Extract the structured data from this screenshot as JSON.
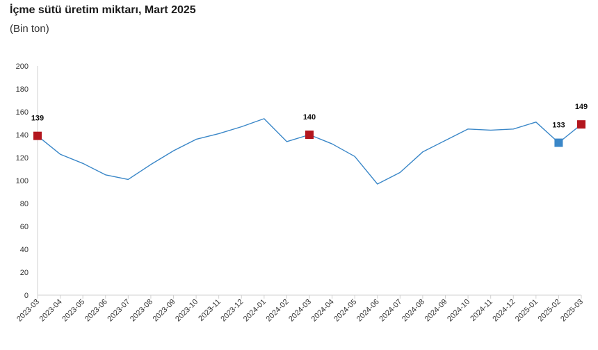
{
  "chart_data": {
    "type": "line",
    "title": "İçme sütü üretim miktarı, Mart 2025",
    "subtitle": "(Bin ton)",
    "xlabel": "",
    "ylabel": "",
    "ylim": [
      0,
      200
    ],
    "yticks": [
      0,
      20,
      40,
      60,
      80,
      100,
      120,
      140,
      160,
      180,
      200
    ],
    "grid": false,
    "legend": "none",
    "x": [
      "2023-03",
      "2023-04",
      "2023-05",
      "2023-06",
      "2023-07",
      "2023-08",
      "2023-09",
      "2023-10",
      "2023-11",
      "2023-12",
      "2024-01",
      "2024-02",
      "2024-03",
      "2024-04",
      "2024-05",
      "2024-06",
      "2024-07",
      "2024-08",
      "2024-09",
      "2024-10",
      "2024-11",
      "2024-12",
      "2025-01",
      "2025-02",
      "2025-03"
    ],
    "series": [
      {
        "values": [
          139,
          123,
          115,
          105,
          101,
          114,
          126,
          136,
          141,
          147,
          154,
          134,
          140,
          132,
          121,
          97,
          107,
          125,
          135,
          145,
          144,
          145,
          151,
          133,
          149
        ],
        "color": "#3a87c8"
      }
    ],
    "highlights": [
      {
        "x": "2023-03",
        "value": 139,
        "label": "139",
        "color": "#b3161e"
      },
      {
        "x": "2024-03",
        "value": 140,
        "label": "140",
        "color": "#b3161e"
      },
      {
        "x": "2025-02",
        "value": 133,
        "label": "133",
        "color": "#3a87c8"
      },
      {
        "x": "2025-03",
        "value": 149,
        "label": "149",
        "color": "#b3161e"
      }
    ]
  }
}
